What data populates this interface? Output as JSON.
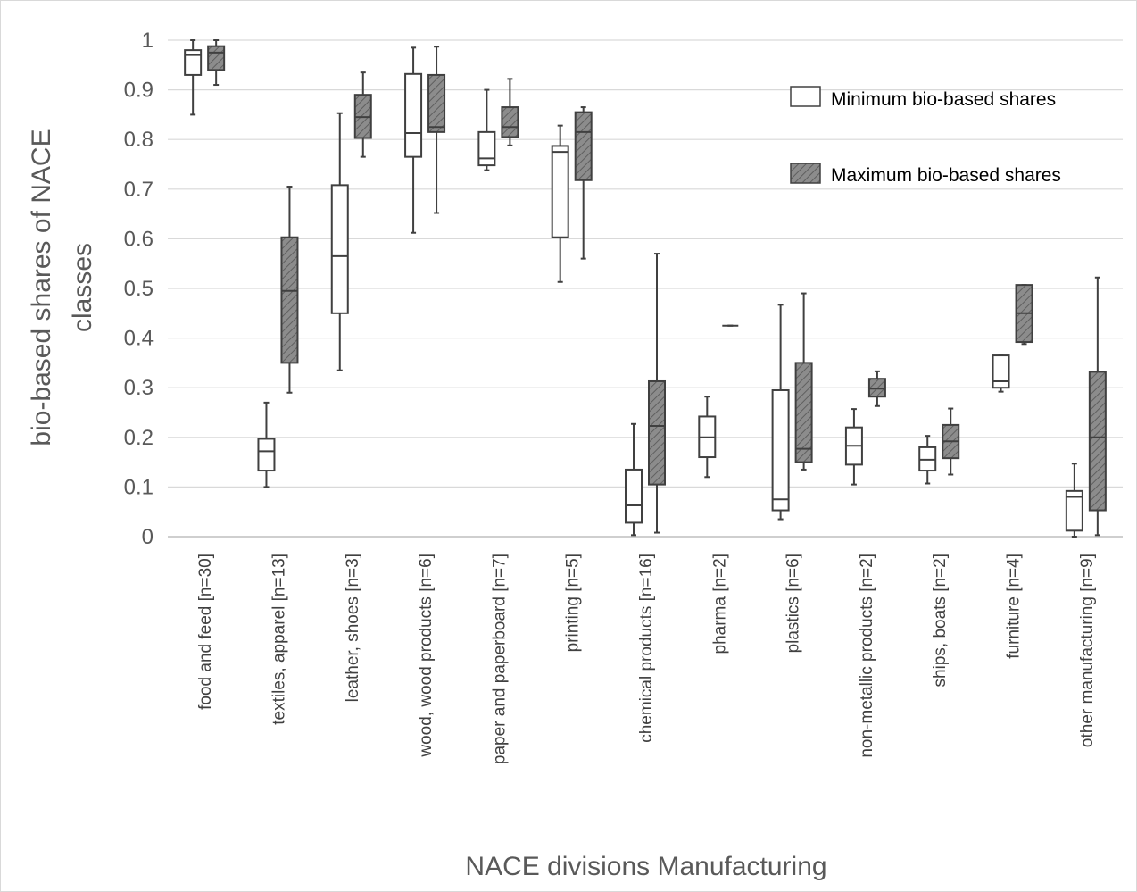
{
  "chart_data": {
    "type": "boxplot",
    "xlabel": "NACE divisions Manufacturing",
    "ylabel_lines": [
      "bio-based shares of NACE",
      "classes"
    ],
    "ylim": [
      0,
      1
    ],
    "yticks": [
      "0",
      "0.1",
      "0.2",
      "0.3",
      "0.4",
      "0.5",
      "0.6",
      "0.7",
      "0.8",
      "0.9",
      "1"
    ],
    "grid": "horizontal",
    "legend_position": "top-right",
    "categories": [
      "food and feed [n=30]",
      "textiles, apparel [n=13]",
      "leather, shoes [n=3]",
      "wood, wood products [n=6]",
      "paper and paperboard [n=7]",
      "printing [n=5]",
      "chemical products [n=16]",
      "pharma [n=2]",
      "plastics [n=6]",
      "non-metallic products [n=2]",
      "ships, boats [n=2]",
      "furniture [n=4]",
      "other manufacturing [n=9]"
    ],
    "series": [
      {
        "name": "Minimum bio-based shares",
        "fill": "#ffffff",
        "stats": [
          {
            "min": 0.85,
            "q1": 0.93,
            "median": 0.97,
            "q3": 0.98,
            "max": 1.0
          },
          {
            "min": 0.1,
            "q1": 0.133,
            "median": 0.172,
            "q3": 0.197,
            "max": 0.27
          },
          {
            "min": 0.335,
            "q1": 0.45,
            "median": 0.565,
            "q3": 0.708,
            "max": 0.853
          },
          {
            "min": 0.612,
            "q1": 0.765,
            "median": 0.813,
            "q3": 0.932,
            "max": 0.985
          },
          {
            "min": 0.738,
            "q1": 0.748,
            "median": 0.762,
            "q3": 0.815,
            "max": 0.9
          },
          {
            "min": 0.513,
            "q1": 0.603,
            "median": 0.775,
            "q3": 0.787,
            "max": 0.828
          },
          {
            "min": 0.003,
            "q1": 0.028,
            "median": 0.063,
            "q3": 0.135,
            "max": 0.227
          },
          {
            "min": 0.12,
            "q1": 0.16,
            "median": 0.2,
            "q3": 0.242,
            "max": 0.282
          },
          {
            "min": 0.035,
            "q1": 0.053,
            "median": 0.075,
            "q3": 0.295,
            "max": 0.467
          },
          {
            "min": 0.105,
            "q1": 0.145,
            "median": 0.183,
            "q3": 0.22,
            "max": 0.257
          },
          {
            "min": 0.107,
            "q1": 0.133,
            "median": 0.155,
            "q3": 0.18,
            "max": 0.203
          },
          {
            "min": 0.292,
            "q1": 0.3,
            "median": 0.313,
            "q3": 0.365,
            "max": 0.365
          },
          {
            "min": 0.0,
            "q1": 0.012,
            "median": 0.08,
            "q3": 0.092,
            "max": 0.147
          }
        ]
      },
      {
        "name": "Maximum bio-based shares",
        "fill": "#8c8c8c",
        "stats": [
          {
            "min": 0.91,
            "q1": 0.94,
            "median": 0.975,
            "q3": 0.988,
            "max": 1.0
          },
          {
            "min": 0.29,
            "q1": 0.35,
            "median": 0.495,
            "q3": 0.603,
            "max": 0.705
          },
          {
            "min": 0.765,
            "q1": 0.803,
            "median": 0.845,
            "q3": 0.89,
            "max": 0.935
          },
          {
            "min": 0.652,
            "q1": 0.815,
            "median": 0.825,
            "q3": 0.93,
            "max": 0.987
          },
          {
            "min": 0.788,
            "q1": 0.805,
            "median": 0.825,
            "q3": 0.865,
            "max": 0.922
          },
          {
            "min": 0.56,
            "q1": 0.718,
            "median": 0.815,
            "q3": 0.855,
            "max": 0.865
          },
          {
            "min": 0.008,
            "q1": 0.105,
            "median": 0.223,
            "q3": 0.313,
            "max": 0.57
          },
          {
            "min": 0.425,
            "q1": 0.425,
            "median": 0.425,
            "q3": 0.425,
            "max": 0.425
          },
          {
            "min": 0.135,
            "q1": 0.15,
            "median": 0.177,
            "q3": 0.35,
            "max": 0.49
          },
          {
            "min": 0.263,
            "q1": 0.282,
            "median": 0.298,
            "q3": 0.318,
            "max": 0.333
          },
          {
            "min": 0.125,
            "q1": 0.158,
            "median": 0.192,
            "q3": 0.225,
            "max": 0.258
          },
          {
            "min": 0.388,
            "q1": 0.392,
            "median": 0.45,
            "q3": 0.507,
            "max": 0.507
          },
          {
            "min": 0.003,
            "q1": 0.053,
            "median": 0.2,
            "q3": 0.332,
            "max": 0.522
          }
        ]
      }
    ]
  }
}
